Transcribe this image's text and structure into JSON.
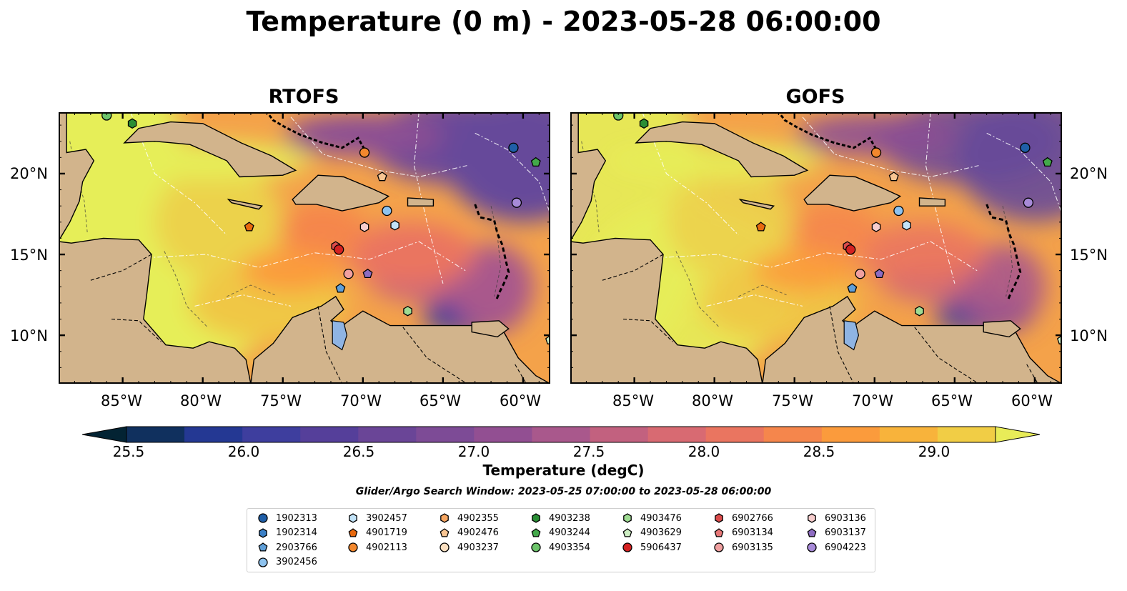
{
  "title": "Temperature (0 m) - 2023-05-28 06:00:00",
  "panels": [
    {
      "title": "RTOFS"
    },
    {
      "title": "GOFS"
    }
  ],
  "axes": {
    "lon_labels": [
      "85°W",
      "80°W",
      "75°W",
      "70°W",
      "65°W",
      "60°W"
    ],
    "lat_labels": [
      "20°N",
      "15°N",
      "10°N"
    ],
    "lon_range": [
      -89,
      -58.3
    ],
    "lat_range": [
      7.0,
      23.8
    ]
  },
  "colorbar": {
    "label": "Temperature (degC)",
    "ticks": [
      "25.5",
      "26.0",
      "26.5",
      "27.0",
      "27.5",
      "28.0",
      "28.5",
      "29.0"
    ],
    "range": [
      25.5,
      29.25
    ],
    "step": 0.25,
    "extend": "both",
    "colors": [
      "#032333",
      "#10305e",
      "#243893",
      "#3e3e9e",
      "#553f9a",
      "#6a4597",
      "#7d4b96",
      "#924f92",
      "#a9588c",
      "#c2617f",
      "#d86a72",
      "#ea7560",
      "#f5864c",
      "#fb9b3c",
      "#f8b33b",
      "#f1cd45",
      "#e8ec58"
    ]
  },
  "search_window": "Glider/Argo Search Window: 2023-05-25 07:00:00 to 2023-05-28 06:00:00",
  "land_color": "#d2b48c",
  "lake_color": "#8fb4e3",
  "legend": [
    {
      "id": "1902313",
      "marker": "circle",
      "color": "#1f5fa8"
    },
    {
      "id": "1902314",
      "marker": "hexagon",
      "color": "#3b80c6"
    },
    {
      "id": "2903766",
      "marker": "pentagon",
      "color": "#5f9fd8"
    },
    {
      "id": "3902456",
      "marker": "circle",
      "color": "#8ec3ef"
    },
    {
      "id": "3902457",
      "marker": "hexagon",
      "color": "#c2e3f8"
    },
    {
      "id": "4901719",
      "marker": "pentagon",
      "color": "#e8690e"
    },
    {
      "id": "4902113",
      "marker": "circle",
      "color": "#f3882d"
    },
    {
      "id": "4902355",
      "marker": "hexagon",
      "color": "#f7a661"
    },
    {
      "id": "4902476",
      "marker": "pentagon",
      "color": "#f8c593"
    },
    {
      "id": "4903237",
      "marker": "circle",
      "color": "#fbdfc0"
    },
    {
      "id": "4903238",
      "marker": "hexagon",
      "color": "#2a8e35"
    },
    {
      "id": "4903244",
      "marker": "pentagon",
      "color": "#43a84a"
    },
    {
      "id": "4903354",
      "marker": "circle",
      "color": "#6cc46a"
    },
    {
      "id": "4903476",
      "marker": "hexagon",
      "color": "#9fdc93"
    },
    {
      "id": "4903629",
      "marker": "pentagon",
      "color": "#cdeec3"
    },
    {
      "id": "5906437",
      "marker": "circle",
      "color": "#d32121"
    },
    {
      "id": "6902766",
      "marker": "hexagon",
      "color": "#db4b4b"
    },
    {
      "id": "6903134",
      "marker": "pentagon",
      "color": "#e77777"
    },
    {
      "id": "6903135",
      "marker": "circle",
      "color": "#f0a0a0"
    },
    {
      "id": "6903136",
      "marker": "hexagon",
      "color": "#f7cdcd"
    },
    {
      "id": "6903137",
      "marker": "pentagon",
      "color": "#8e6cc2"
    },
    {
      "id": "6904223",
      "marker": "circle",
      "color": "#a78ad8"
    }
  ],
  "floats": [
    {
      "id": "4903354",
      "lon": -86.0,
      "lat": 23.6
    },
    {
      "id": "4903238",
      "lon": -84.4,
      "lat": 23.1
    },
    {
      "id": "1902313",
      "lon": -60.6,
      "lat": 21.6
    },
    {
      "id": "4903244",
      "lon": -59.2,
      "lat": 20.7
    },
    {
      "id": "4902113",
      "lon": -69.9,
      "lat": 21.3
    },
    {
      "id": "4902476",
      "lon": -68.8,
      "lat": 19.8
    },
    {
      "id": "6904223",
      "lon": -60.4,
      "lat": 18.2
    },
    {
      "id": "3902456",
      "lon": -68.5,
      "lat": 17.7
    },
    {
      "id": "3902457",
      "lon": -68.0,
      "lat": 16.8
    },
    {
      "id": "6903136",
      "lon": -69.9,
      "lat": 16.7
    },
    {
      "id": "4901719",
      "lon": -77.1,
      "lat": 16.7
    },
    {
      "id": "6902766",
      "lon": -71.7,
      "lat": 15.5
    },
    {
      "id": "5906437",
      "lon": -71.5,
      "lat": 15.3
    },
    {
      "id": "6903135",
      "lon": -70.9,
      "lat": 13.8
    },
    {
      "id": "6903137",
      "lon": -69.7,
      "lat": 13.8
    },
    {
      "id": "2903766",
      "lon": -71.4,
      "lat": 12.9
    },
    {
      "id": "4903476",
      "lon": -67.2,
      "lat": 11.5
    },
    {
      "id": "4903629",
      "lon": -58.3,
      "lat": 9.7
    }
  ]
}
